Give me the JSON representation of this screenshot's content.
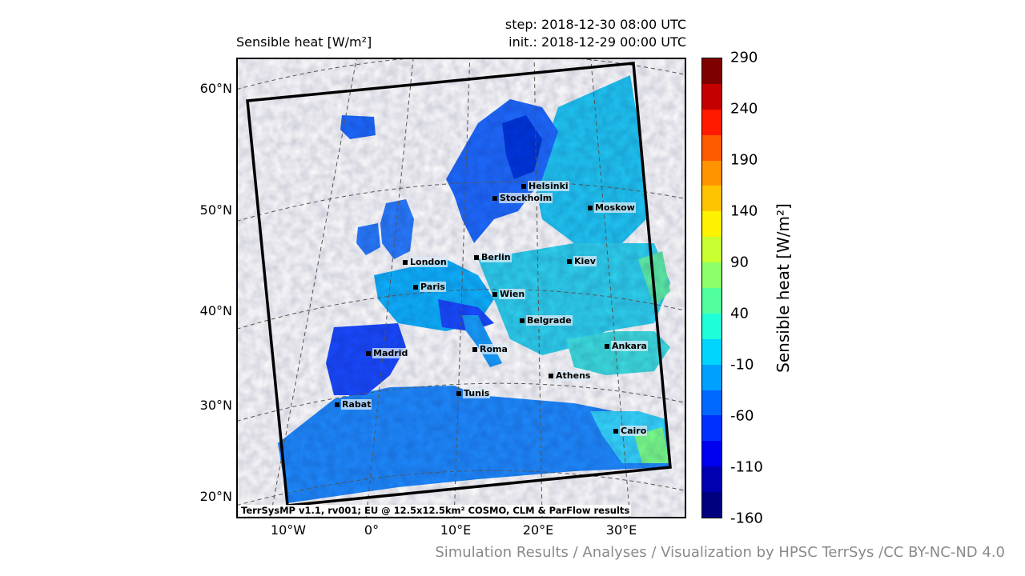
{
  "header": {
    "title": "Sensible heat [W/m²]",
    "step": "step: 2018-12-30 08:00 UTC",
    "init": "init.: 2018-12-29 00:00 UTC"
  },
  "map": {
    "caption": "TerrSysMP v1.1, rv001; EU @ 12.5x12.5km² COSMO, CLM & ParFlow results",
    "lat_labels": [
      "60°N",
      "50°N",
      "40°N",
      "30°N",
      "20°N"
    ],
    "lon_labels": [
      "10°W",
      "0°",
      "10°E",
      "20°E",
      "30°E"
    ],
    "cities": [
      {
        "name": "Helsinki"
      },
      {
        "name": "Stockholm"
      },
      {
        "name": "Moskow"
      },
      {
        "name": "London"
      },
      {
        "name": "Berlin"
      },
      {
        "name": "Kiev"
      },
      {
        "name": "Paris"
      },
      {
        "name": "Wien"
      },
      {
        "name": "Belgrade"
      },
      {
        "name": "Madrid"
      },
      {
        "name": "Roma"
      },
      {
        "name": "Ankara"
      },
      {
        "name": "Athens"
      },
      {
        "name": "Tunis"
      },
      {
        "name": "Rabat"
      },
      {
        "name": "Cairo"
      }
    ]
  },
  "colorbar": {
    "label": "Sensible heat [W/m²]",
    "ticks": [
      "290",
      "240",
      "190",
      "140",
      "90",
      "40",
      "-10",
      "-60",
      "-110",
      "-160"
    ],
    "colors": [
      "#7f0000",
      "#c40000",
      "#ff1a00",
      "#ff5a00",
      "#ff9400",
      "#ffc400",
      "#fff200",
      "#c7ff30",
      "#8cff6a",
      "#52ff9e",
      "#1effd9",
      "#00d4ff",
      "#00a0ff",
      "#0068ff",
      "#0030ff",
      "#0000f1",
      "#0000b0",
      "#00007f"
    ]
  },
  "credit": "Simulation Results / Analyses / Visualization by HPSC TerrSys /CC BY-NC-ND 4.0"
}
